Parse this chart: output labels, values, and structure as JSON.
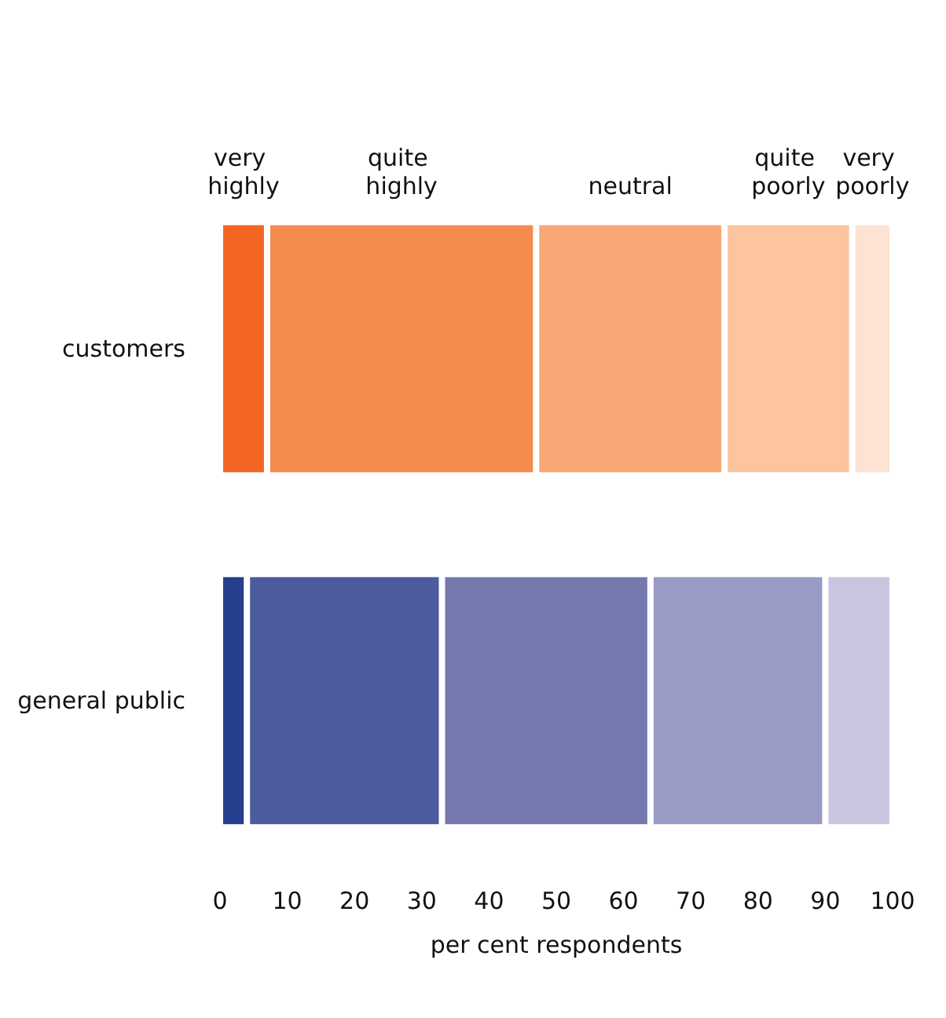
{
  "chart_data": {
    "type": "bar",
    "stacked": true,
    "orientation": "horizontal",
    "xlabel": "per cent respondents",
    "categories": [
      "customers",
      "general public"
    ],
    "series": [
      {
        "name": "very highly",
        "colors": [
          "#f26522",
          "#263f8c"
        ],
        "values": [
          7,
          4
        ]
      },
      {
        "name": "quite highly",
        "colors": [
          "#f58b4c",
          "#4b5b9e"
        ],
        "values": [
          40,
          29
        ]
      },
      {
        "name": "neutral",
        "colors": [
          "#f9a777",
          "#7579ae"
        ],
        "values": [
          28,
          31
        ]
      },
      {
        "name": "quite poorly",
        "colors": [
          "#fdc4a0",
          "#9a9ac7"
        ],
        "values": [
          19,
          26
        ]
      },
      {
        "name": "very poorly",
        "colors": [
          "#fde3d3",
          "#c8c6df"
        ],
        "values": [
          6,
          10
        ]
      }
    ],
    "xlim": [
      0,
      100
    ],
    "xticks": [
      0,
      10,
      20,
      30,
      40,
      50,
      60,
      70,
      80,
      90,
      100
    ],
    "grid": false,
    "legend": false
  }
}
